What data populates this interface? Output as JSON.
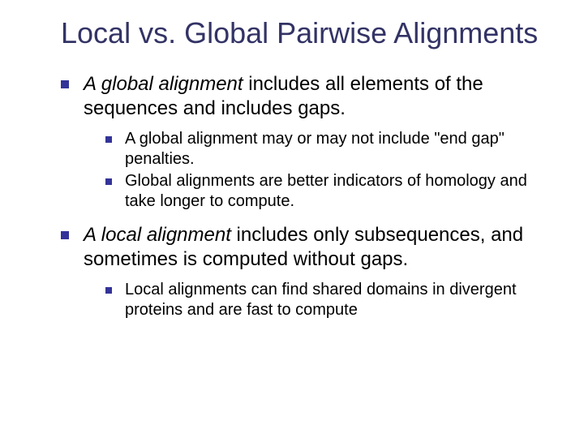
{
  "colors": {
    "title": "#333366",
    "bullet": "#333399",
    "body": "#000000",
    "background": "#ffffff"
  },
  "fonts": {
    "title_size_pt": 36,
    "level1_size_pt": 24,
    "level2_size_pt": 20
  },
  "title": "Local vs. Global Pairwise Alignments",
  "items": [
    {
      "italic_lead": "A global alignment",
      "rest": " includes all elements of the sequences and includes gaps.",
      "sub": [
        "A global alignment may or may not include \"end gap\" penalties.",
        "Global alignments are better indicators of homology and take longer to compute."
      ]
    },
    {
      "italic_lead": "A local alignment",
      "rest": " includes only subsequences, and sometimes is computed without gaps.",
      "sub": [
        "Local alignments can find shared domains in divergent proteins and are fast to compute"
      ]
    }
  ]
}
